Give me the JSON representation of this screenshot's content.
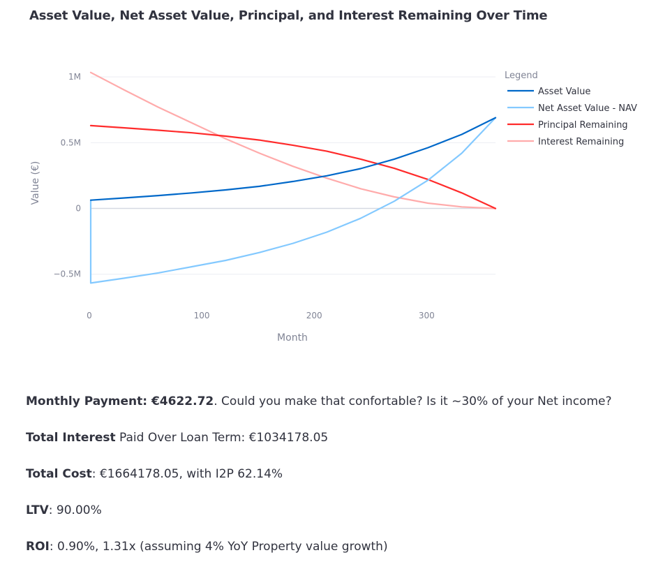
{
  "chart_data": {
    "type": "line",
    "title": "Asset Value, Net Asset Value, Principal, and Interest Remaining Over Time",
    "xlabel": "Month",
    "ylabel": "Value (€)",
    "xlim": [
      0,
      360
    ],
    "ylim": [
      -0.65,
      1.07
    ],
    "x_ticks": [
      0,
      100,
      200,
      300
    ],
    "x_tick_labels": [
      "0",
      "100",
      "200",
      "300"
    ],
    "y_ticks": [
      -0.5,
      0,
      0.5,
      1
    ],
    "y_tick_labels": [
      "−0.5M",
      "0",
      "0.5M",
      "1M"
    ],
    "legend_title": "Legend",
    "legend_position": "top-right",
    "x": [
      0,
      30,
      60,
      90,
      120,
      150,
      180,
      210,
      240,
      270,
      300,
      330,
      360
    ],
    "series": [
      {
        "name": "Asset Value",
        "color": "#0068c9",
        "values": [
          0.063,
          0.08,
          0.098,
          0.118,
          0.141,
          0.168,
          0.205,
          0.248,
          0.303,
          0.375,
          0.462,
          0.563,
          0.69
        ]
      },
      {
        "name": "Net Asset Value - NAV",
        "color": "#83c9ff",
        "values": [
          -0.567,
          -0.53,
          -0.49,
          -0.443,
          -0.395,
          -0.335,
          -0.265,
          -0.18,
          -0.075,
          0.055,
          0.215,
          0.42,
          0.69
        ]
      },
      {
        "name": "Principal Remaining",
        "color": "#ff2b2b",
        "values": [
          0.63,
          0.613,
          0.595,
          0.575,
          0.55,
          0.52,
          0.48,
          0.435,
          0.375,
          0.305,
          0.22,
          0.118,
          0.0
        ]
      },
      {
        "name": "Interest Remaining",
        "color": "#ffabab",
        "values": [
          1.034,
          0.9,
          0.77,
          0.65,
          0.53,
          0.42,
          0.32,
          0.23,
          0.15,
          0.088,
          0.04,
          0.012,
          0.0
        ]
      }
    ]
  },
  "nav_initial_point": {
    "x": 0,
    "y": 0.063
  },
  "summary": {
    "line1_bold": "Monthly Payment: €4622.72",
    "line1_rest": ". Could you make that confortable? Is it ~30% of your Net income?",
    "line2_bold": "Total Interest",
    "line2_rest": " Paid Over Loan Term: €1034178.05",
    "line3_bold": "Total Cost",
    "line3_rest": ": €1664178.05, with I2P 62.14%",
    "line4_bold": "LTV",
    "line4_rest": ": 90.00%",
    "line5_bold": "ROI",
    "line5_rest": ": 0.90%, 1.31x (assuming 4% YoY Property value growth)"
  }
}
